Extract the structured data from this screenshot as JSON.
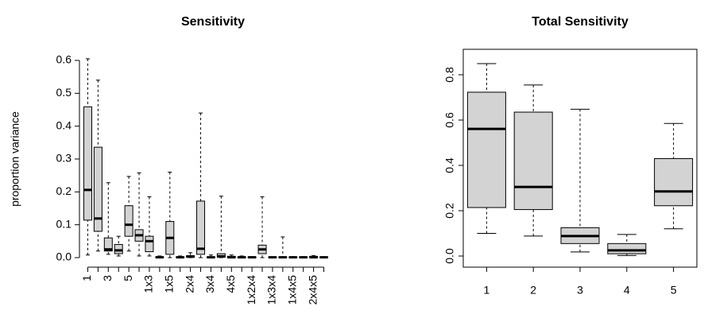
{
  "chart_data": [
    {
      "type": "box",
      "title": "Sensitivity",
      "y_label": "proportion variance",
      "x_label_rotation": "vertical",
      "frame": false,
      "color": "#d3d3d3",
      "categories": [
        "1",
        null,
        "3",
        null,
        "5",
        null,
        "1x3",
        null,
        "1x5",
        null,
        "2x4",
        null,
        "3x4",
        null,
        "4x5",
        null,
        "1x2x4",
        null,
        "1x3x4",
        null,
        "1x4x5",
        null,
        "2x4x5",
        null
      ],
      "low": [
        0.008,
        0.02,
        0.01,
        0.005,
        0.02,
        0.005,
        0.005,
        0,
        0,
        0,
        0,
        0,
        0,
        0,
        0,
        0,
        0,
        0,
        0,
        0,
        0,
        0,
        0,
        0
      ],
      "q1": [
        0.114,
        0.08,
        0.02,
        0.012,
        0.065,
        0.05,
        0.018,
        0,
        0.01,
        0,
        0.001,
        0.01,
        0,
        0.001,
        0,
        0,
        0,
        0.012,
        0,
        0,
        0,
        0,
        0,
        0
      ],
      "median": [
        0.206,
        0.119,
        0.025,
        0.022,
        0.1,
        0.068,
        0.05,
        0.001,
        0.06,
        0.001,
        0.003,
        0.027,
        0.001,
        0.004,
        0.001,
        0.001,
        0.001,
        0.025,
        0.001,
        0.001,
        0.001,
        0.001,
        0.001,
        0.001
      ],
      "q3": [
        0.459,
        0.336,
        0.06,
        0.04,
        0.158,
        0.085,
        0.065,
        0.002,
        0.11,
        0.002,
        0.006,
        0.172,
        0.002,
        0.012,
        0.004,
        0.002,
        0.002,
        0.038,
        0.002,
        0.002,
        0.002,
        0.002,
        0.004,
        0.002
      ],
      "high": [
        0.605,
        0.54,
        0.228,
        0.065,
        0.247,
        0.258,
        0.185,
        0.005,
        0.26,
        0.005,
        0.015,
        0.44,
        0.008,
        0.187,
        0.008,
        0.005,
        0.003,
        0.185,
        0.002,
        0.063,
        0.003,
        0.003,
        0.006,
        0.003
      ],
      "ylim": [
        0,
        0.6
      ],
      "yticks": [
        {
          "value": 0,
          "label": "0.0"
        },
        0.1,
        0.2,
        0.3,
        0.4,
        0.5,
        0.6
      ]
    },
    {
      "type": "box",
      "title": "Total Sensitivity",
      "x_label_rotation": "horizontal",
      "frame": true,
      "color": "#d3d3d3",
      "categories": [
        "1",
        "2",
        "3",
        "4",
        "5"
      ],
      "low": [
        0.1,
        0.088,
        0.018,
        0.002,
        0.12
      ],
      "q1": [
        0.214,
        0.205,
        0.055,
        0.01,
        0.222
      ],
      "median": [
        0.561,
        0.305,
        0.088,
        0.025,
        0.285
      ],
      "q3": [
        0.723,
        0.635,
        0.125,
        0.055,
        0.43
      ],
      "high": [
        0.849,
        0.755,
        0.648,
        0.095,
        0.585
      ],
      "ylim": [
        0,
        0.8
      ],
      "yticks": [
        {
          "value": 0,
          "label": "0.0"
        },
        0.2,
        0.4,
        0.6,
        0.8
      ]
    }
  ]
}
